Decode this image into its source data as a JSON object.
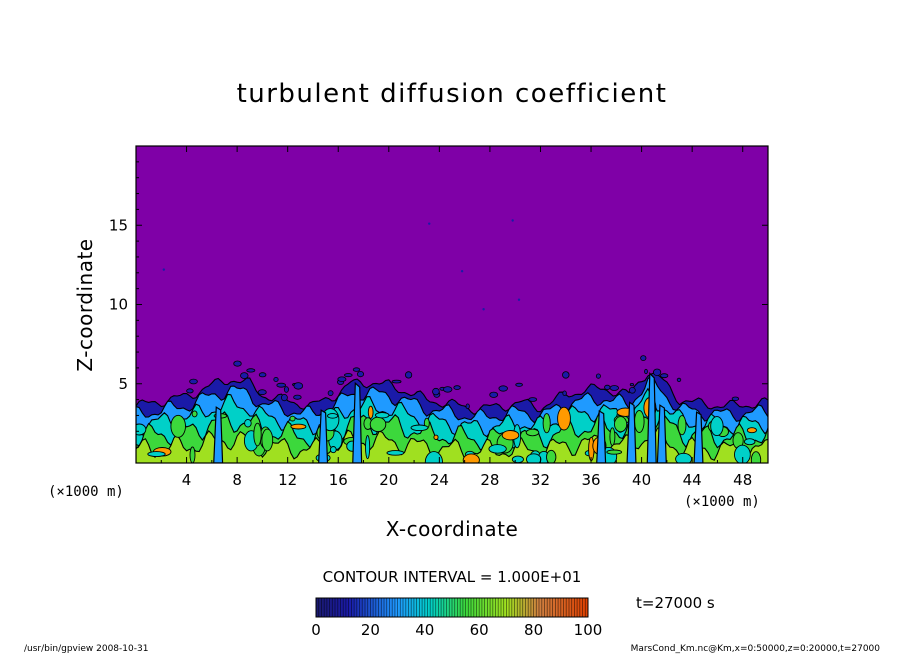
{
  "chart_data": {
    "type": "heatmap",
    "title": "turbulent diffusion coefficient",
    "xlabel": "X-coordinate",
    "ylabel": "Z-coordinate",
    "x_unit": "(×1000 m)",
    "y_unit": "(×1000 m)",
    "xlim": [
      0,
      50
    ],
    "ylim": [
      0,
      20
    ],
    "x_ticks": [
      4,
      8,
      12,
      16,
      20,
      24,
      28,
      32,
      36,
      40,
      44,
      48
    ],
    "y_ticks": [
      5,
      10,
      15
    ],
    "contour_interval_text": "CONTOUR INTERVAL = 1.000E+01",
    "colorbar": {
      "range": [
        0,
        100
      ],
      "ticks": [
        0,
        20,
        40,
        60,
        80,
        100
      ],
      "colors": {
        "background": "#7f00a7",
        "low": "#1a1aa8",
        "mid_low": "#1f9aff",
        "mid": "#00d0c8",
        "mid_high": "#3cd83c",
        "high": "#a0e020",
        "top": "#e04000"
      }
    },
    "boundary_top_km": [
      [
        0,
        3.6
      ],
      [
        2,
        3.9
      ],
      [
        4,
        4.2
      ],
      [
        6,
        4.9
      ],
      [
        7.5,
        5.3
      ],
      [
        9,
        5.0
      ],
      [
        10,
        4.3
      ],
      [
        12,
        3.9
      ],
      [
        14,
        3.6
      ],
      [
        16,
        4.4
      ],
      [
        17,
        5.0
      ],
      [
        18.5,
        5.1
      ],
      [
        20,
        4.9
      ],
      [
        21.5,
        4.5
      ],
      [
        23,
        4.0
      ],
      [
        25,
        3.7
      ],
      [
        27,
        3.4
      ],
      [
        29,
        3.6
      ],
      [
        30.5,
        3.8
      ],
      [
        32,
        3.5
      ],
      [
        34,
        4.3
      ],
      [
        35.5,
        4.6
      ],
      [
        37,
        4.7
      ],
      [
        39,
        4.3
      ],
      [
        40.5,
        5.8
      ],
      [
        41.5,
        5.3
      ],
      [
        43,
        4.0
      ],
      [
        45,
        3.7
      ],
      [
        47,
        3.6
      ],
      [
        50,
        3.8
      ]
    ],
    "timestamp": "t=27000 s"
  },
  "footer": {
    "left": "/usr/bin/gpview  2008-10-31",
    "right": "MarsCond_Km.nc@Km,x=0:50000,z=0:20000,t=27000"
  }
}
